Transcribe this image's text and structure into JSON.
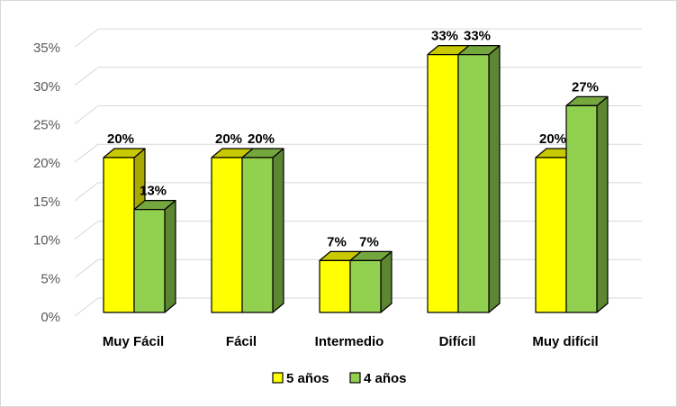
{
  "chart_data": {
    "type": "bar",
    "style": "3d-clustered-column",
    "title": "",
    "xlabel": "",
    "ylabel": "",
    "categories": [
      "Muy Fácil",
      "Fácil",
      "Intermedio",
      "Difícil",
      "Muy difícil"
    ],
    "series": [
      {
        "name": "5 años",
        "values": [
          20,
          20,
          6.7,
          33.3,
          20
        ],
        "labels": [
          "20%",
          "20%",
          "7%",
          "33%",
          "20%"
        ],
        "color": "#ffff00",
        "top_color": "#c9c900",
        "side_color": "#a8a800"
      },
      {
        "name": "4 años",
        "values": [
          13.3,
          20,
          6.7,
          33.3,
          26.7
        ],
        "labels": [
          "13%",
          "20%",
          "7%",
          "33%",
          "27%"
        ],
        "color": "#92d050",
        "top_color": "#74a83e",
        "side_color": "#5c8632"
      }
    ],
    "yticks": [
      "0%",
      "5%",
      "10%",
      "15%",
      "20%",
      "25%",
      "30%",
      "35%"
    ],
    "ylim": [
      0,
      35
    ],
    "grid": true,
    "legend_position": "bottom"
  }
}
